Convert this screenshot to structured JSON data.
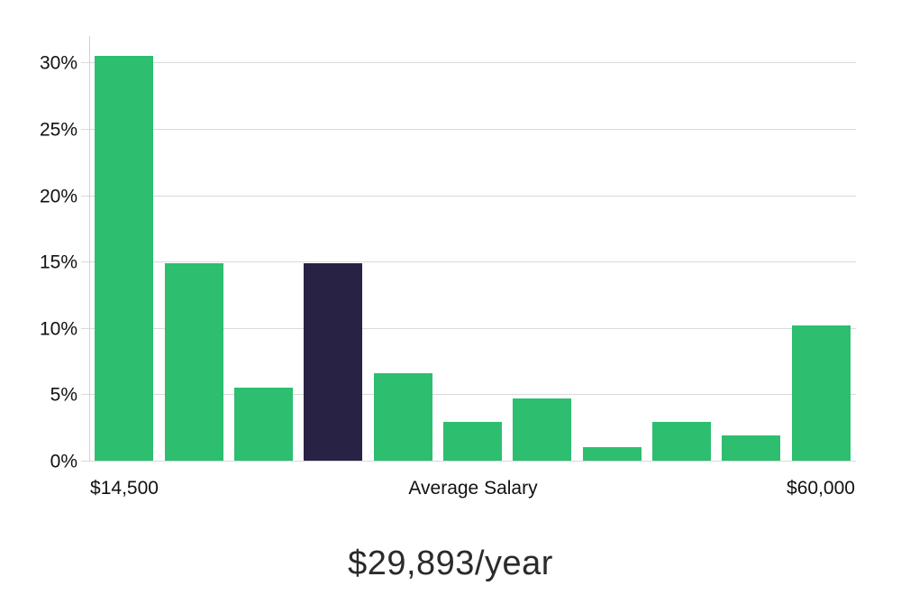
{
  "chart_data": {
    "type": "bar",
    "values": [
      30.5,
      14.9,
      5.5,
      14.9,
      6.6,
      2.9,
      4.7,
      1.0,
      2.9,
      1.9,
      10.2
    ],
    "value_unit": "%",
    "highlighted_index": 3,
    "bar_color": "#2dbe70",
    "highlight_color": "#282345",
    "yticks": [
      0,
      5,
      10,
      15,
      20,
      25,
      30
    ],
    "ytick_labels": [
      "0%",
      "5%",
      "10%",
      "15%",
      "20%",
      "25%",
      "30%"
    ],
    "ylim": [
      0,
      32.2
    ],
    "grid": "horizontal",
    "legend": false,
    "x_axis": {
      "left_label": "$14,500",
      "center_label": "Average Salary",
      "right_label": "$60,000"
    }
  },
  "footer": {
    "salary_text": "$29,893/year"
  },
  "colors": {
    "background": "#ffffff",
    "grid": "#d9d9d9",
    "axis": "#d2d2d2",
    "tick_text": "#111111",
    "footer_text": "#2b2b2b"
  }
}
